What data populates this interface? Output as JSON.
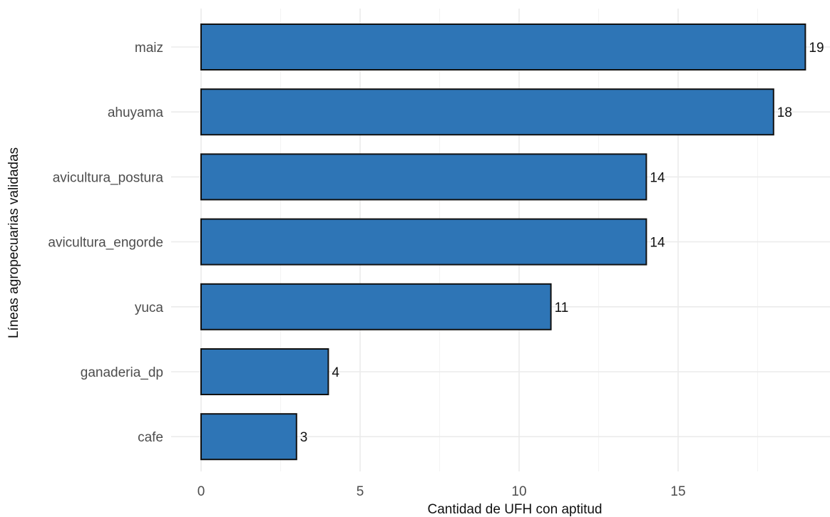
{
  "chart_data": {
    "type": "bar",
    "orientation": "horizontal",
    "categories": [
      "maiz",
      "ahuyama",
      "avicultura_postura",
      "avicultura_engorde",
      "yuca",
      "ganaderia_dp",
      "cafe"
    ],
    "values": [
      19,
      18,
      14,
      14,
      11,
      4,
      3
    ],
    "xlabel": "Cantidad de UFH con aptitud",
    "ylabel": "Líneas agropecuarias validadas",
    "xlim": [
      0,
      19.8
    ],
    "xticks": [
      0,
      5,
      10,
      15
    ],
    "grid": true,
    "bar_color": "#2e75b6",
    "bar_outline": "#111111"
  }
}
